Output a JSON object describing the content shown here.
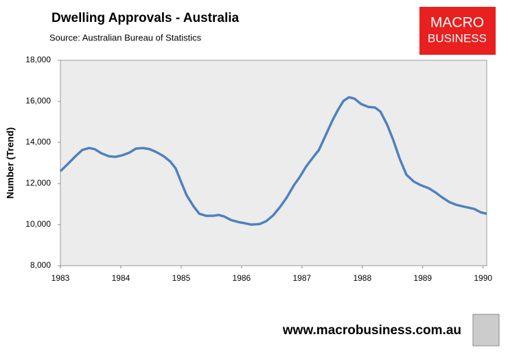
{
  "chart_data": {
    "type": "line",
    "title": "Dwelling Approvals - Australia",
    "subtitle": "Source:   Australian Bureau of Statistics",
    "y_label": "Number (Trend)",
    "logo": [
      "MACRO",
      "BUSINESS"
    ],
    "footer": "www.macrobusiness.com.au",
    "x": [
      1983.0,
      1983.14,
      1983.25,
      1983.36,
      1983.48,
      1983.57,
      1983.68,
      1983.8,
      1983.91,
      1984.02,
      1984.14,
      1984.25,
      1984.37,
      1984.48,
      1984.59,
      1984.71,
      1984.82,
      1984.91,
      1985.0,
      1985.09,
      1985.21,
      1985.3,
      1985.41,
      1985.53,
      1985.62,
      1985.71,
      1985.82,
      1985.94,
      1986.05,
      1986.16,
      1986.3,
      1986.41,
      1986.53,
      1986.64,
      1986.75,
      1986.87,
      1986.96,
      1987.07,
      1987.19,
      1987.28,
      1987.39,
      1987.51,
      1987.6,
      1987.69,
      1987.78,
      1987.87,
      1987.98,
      1988.1,
      1988.21,
      1988.3,
      1988.41,
      1988.51,
      1988.62,
      1988.73,
      1988.85,
      1988.96,
      1989.1,
      1989.21,
      1989.32,
      1989.44,
      1989.55,
      1989.69,
      1989.85,
      1989.96,
      1990.06
    ],
    "series": [
      {
        "name": "Dwelling Approvals",
        "color": "#4f81bd",
        "values": [
          12600,
          13000,
          13330,
          13630,
          13730,
          13670,
          13470,
          13330,
          13300,
          13370,
          13500,
          13700,
          13730,
          13670,
          13530,
          13330,
          13070,
          12730,
          12070,
          11430,
          10870,
          10530,
          10430,
          10430,
          10470,
          10400,
          10230,
          10130,
          10070,
          10000,
          10030,
          10170,
          10470,
          10870,
          11330,
          11930,
          12300,
          12830,
          13300,
          13630,
          14330,
          15100,
          15600,
          16030,
          16200,
          16130,
          15870,
          15730,
          15700,
          15500,
          14870,
          14130,
          13200,
          12430,
          12100,
          11930,
          11770,
          11570,
          11330,
          11100,
          10970,
          10870,
          10770,
          10600,
          10530
        ]
      }
    ],
    "xlim": [
      1983,
      1990.06
    ],
    "xticks": [
      1983,
      1984,
      1985,
      1986,
      1987,
      1988,
      1989,
      1990
    ],
    "ylim": [
      8000,
      18000
    ],
    "yticks": [
      {
        "value": 8000,
        "label": "8,000"
      },
      {
        "value": 10000,
        "label": "10,000"
      },
      {
        "value": 12000,
        "label": "12,000"
      },
      {
        "value": 14000,
        "label": "14,000"
      },
      {
        "value": 16000,
        "label": "16,000"
      },
      {
        "value": 18000,
        "label": "18,000"
      }
    ]
  }
}
